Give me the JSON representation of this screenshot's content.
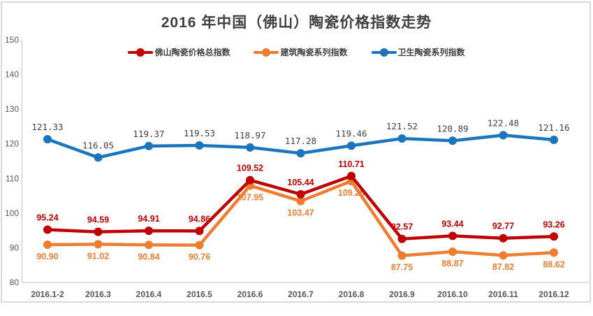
{
  "page": {
    "title": "2016 年中国（佛山）陶瓷价格指数走势"
  },
  "chart_data": {
    "type": "line",
    "title": "2016 年中国（佛山）陶瓷价格指数走势",
    "categories": [
      "2016.1-2",
      "2016.3",
      "2016.4",
      "2016.5",
      "2016.6",
      "2016.7",
      "2016.8",
      "2016.9",
      "2016.10",
      "2016.11",
      "2016.12"
    ],
    "series": [
      {
        "name": "佛山陶瓷价格总指数",
        "color": "#c00000",
        "label_color": "#c00000",
        "label_position": "above",
        "values": [
          95.24,
          94.59,
          94.91,
          94.86,
          109.52,
          105.44,
          110.71,
          92.57,
          93.44,
          92.77,
          93.26
        ],
        "labels": [
          "95.24",
          "94.59",
          "94.91",
          "94.86",
          "109.52",
          "105.44",
          "110.71",
          "92.57",
          "93.44",
          "92.77",
          "93.26"
        ]
      },
      {
        "name": "建筑陶瓷系列指数",
        "color": "#ed7d31",
        "label_color": "#ed7d31",
        "label_position": "below",
        "values": [
          90.9,
          91.02,
          90.84,
          90.76,
          107.95,
          103.47,
          109.25,
          87.75,
          88.87,
          87.82,
          88.62
        ],
        "labels": [
          "90.90",
          "91.02",
          "90.84",
          "90.76",
          "107.95",
          "103.47",
          "109.25",
          "87.75",
          "88.87",
          "87.82",
          "88.62"
        ]
      },
      {
        "name": "卫生陶瓷系列指数",
        "color": "#1b75bc",
        "label_color": "#404040",
        "label_position": "above",
        "values": [
          121.33,
          116.05,
          119.37,
          119.53,
          118.97,
          117.28,
          119.46,
          121.52,
          120.89,
          122.48,
          121.16
        ],
        "labels": [
          "121.33",
          "116.05",
          "119.37",
          "119.53",
          "118.97",
          "117.28",
          "119.46",
          "121.52",
          "120.89",
          "122.48",
          "121.16"
        ]
      }
    ],
    "y_ticks": [
      "150",
      "140",
      "130",
      "120",
      "110",
      "100",
      "90",
      "80"
    ],
    "ylim": [
      80,
      150
    ],
    "xlabel": "",
    "ylabel": "",
    "grid": false,
    "legend_position": "top"
  }
}
